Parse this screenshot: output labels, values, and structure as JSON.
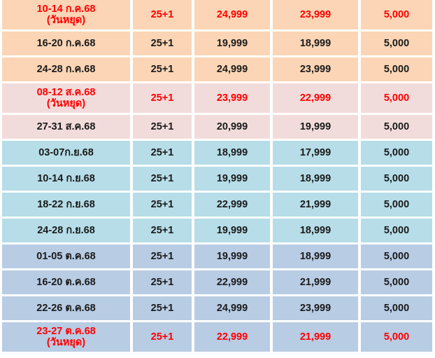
{
  "palette": {
    "orange": "#fbd5b5",
    "pink": "#f2dcdb",
    "cyan": "#b6dde8",
    "steel": "#b8cce4",
    "holiday_text": "#ff0000",
    "text": "#1a1a1a"
  },
  "rows": [
    {
      "date": "10-14 ก.ค.68\n(วันหยุด)",
      "pax": "25+1",
      "p1": "24,999",
      "p2": "23,999",
      "p3": "5,000",
      "group": "orange",
      "holiday": true
    },
    {
      "date": "16-20 ก.ค.68",
      "pax": "25+1",
      "p1": "19,999",
      "p2": "18,999",
      "p3": "5,000",
      "group": "orange",
      "holiday": false
    },
    {
      "date": "24-28 ก.ค.68",
      "pax": "25+1",
      "p1": "24,999",
      "p2": "23,999",
      "p3": "5,000",
      "group": "orange",
      "holiday": false
    },
    {
      "date": "08-12 ส.ค.68\n(วันหยุด)",
      "pax": "25+1",
      "p1": "23,999",
      "p2": "22,999",
      "p3": "5,000",
      "group": "pink",
      "holiday": true
    },
    {
      "date": "27-31 ส.ค.68",
      "pax": "25+1",
      "p1": "20,999",
      "p2": "19,999",
      "p3": "5,000",
      "group": "pink",
      "holiday": false
    },
    {
      "date": "03-07ก.ย.68",
      "pax": "25+1",
      "p1": "18,999",
      "p2": "17,999",
      "p3": "5,000",
      "group": "cyan",
      "holiday": false
    },
    {
      "date": "10-14 ก.ย.68",
      "pax": "25+1",
      "p1": "19,999",
      "p2": "18,999",
      "p3": "5,000",
      "group": "cyan",
      "holiday": false
    },
    {
      "date": "18-22 ก.ย.68",
      "pax": "25+1",
      "p1": "22,999",
      "p2": "21,999",
      "p3": "5,000",
      "group": "cyan",
      "holiday": false
    },
    {
      "date": "24-28 ก.ย.68",
      "pax": "25+1",
      "p1": "19,999",
      "p2": "18,999",
      "p3": "5,000",
      "group": "cyan",
      "holiday": false
    },
    {
      "date": "01-05 ต.ค.68",
      "pax": "25+1",
      "p1": "19,999",
      "p2": "18,999",
      "p3": "5,000",
      "group": "steel",
      "holiday": false
    },
    {
      "date": "16-20 ต.ค.68",
      "pax": "25+1",
      "p1": "22,999",
      "p2": "21,999",
      "p3": "5,000",
      "group": "steel",
      "holiday": false
    },
    {
      "date": "22-26 ต.ค.68",
      "pax": "25+1",
      "p1": "24,999",
      "p2": "23,999",
      "p3": "5,000",
      "group": "steel",
      "holiday": false
    },
    {
      "date": "23-27 ต.ค.68\n(วันหยุด)",
      "pax": "25+1",
      "p1": "22,999",
      "p2": "21,999",
      "p3": "5,000",
      "group": "steel",
      "holiday": true
    }
  ]
}
